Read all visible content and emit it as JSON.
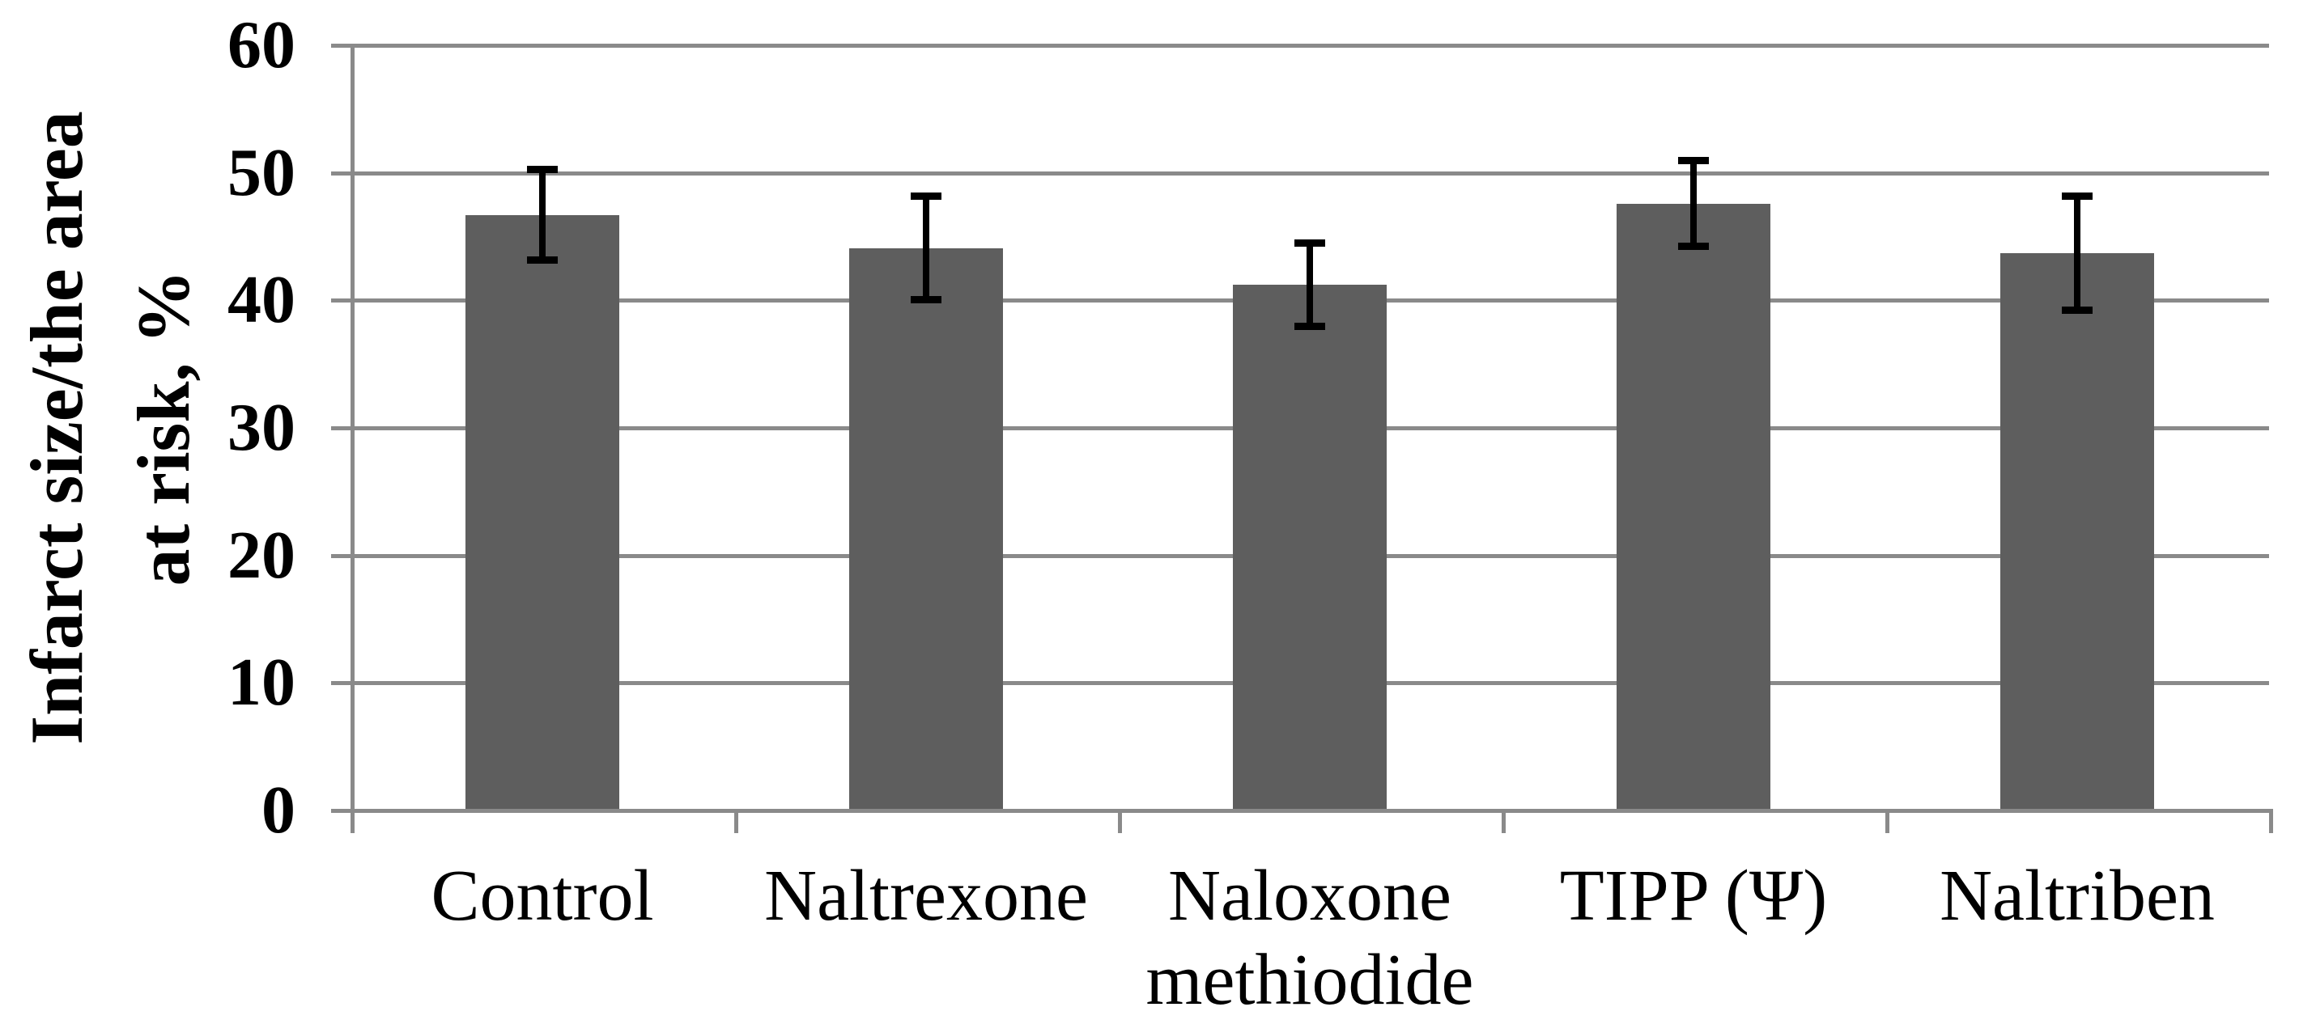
{
  "figure": {
    "background_color": "#ffffff",
    "text_color": "#000000"
  },
  "chart_data": {
    "type": "bar",
    "title": "",
    "xlabel": "",
    "ylabel": "Infarct size/the area\nat risk, %",
    "categories": [
      "Control",
      "Naltrexone",
      "Naloxone\nmethiodide",
      "TIPP (Ψ)",
      "Naltriben"
    ],
    "values": [
      46.7,
      44.1,
      41.2,
      47.6,
      43.7
    ],
    "errors": [
      3.6,
      4.1,
      3.3,
      3.4,
      4.5
    ],
    "error_style": "symmetric-caps",
    "yticks": [
      0,
      10,
      20,
      30,
      40,
      50,
      60
    ],
    "ylim": [
      0,
      60
    ],
    "grid": "horizontal",
    "legend": "none",
    "bar_color": "#5e5e5e",
    "grid_color": "#8a8a8a",
    "axis_color": "#8a8a8a",
    "error_color": "#000000"
  }
}
